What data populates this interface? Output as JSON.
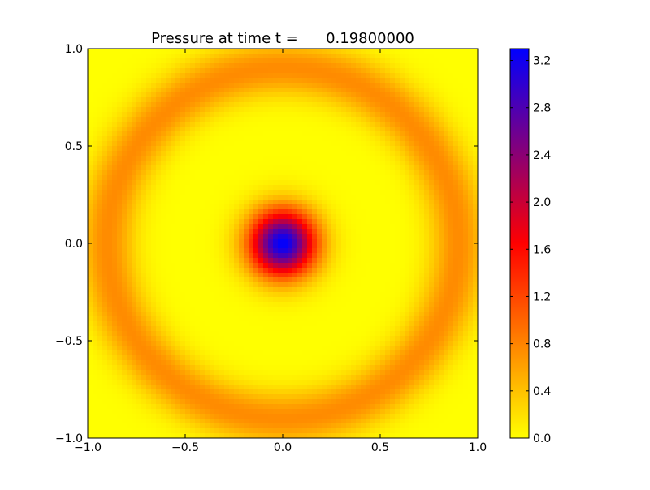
{
  "chart_data": {
    "type": "heatmap",
    "title": "Pressure at time t =      0.19800000",
    "xlabel": "",
    "ylabel": "",
    "xlim": [
      -1.0,
      1.0
    ],
    "ylim": [
      -1.0,
      1.0
    ],
    "x_ticks": [
      "−1.0",
      "−0.5",
      "0.0",
      "0.5",
      "1.0"
    ],
    "y_ticks": [
      "−1.0",
      "−0.5",
      "0.0",
      "0.5",
      "1.0"
    ],
    "x_tick_values": [
      -1.0,
      -0.5,
      0.0,
      0.5,
      1.0
    ],
    "y_tick_values": [
      -1.0,
      -0.5,
      0.0,
      0.5,
      1.0
    ],
    "grid": false,
    "field": {
      "description": "radially symmetric pressure field",
      "center_peak": {
        "r": 0.0,
        "value": 3.3
      },
      "center_sigma": 0.12,
      "ring": {
        "r": 0.9,
        "value": 0.75,
        "sigma": 0.1
      }
    },
    "colorbar": {
      "min": 0.0,
      "max": 3.3,
      "ticks": [
        "0.0",
        "0.4",
        "0.8",
        "1.2",
        "1.6",
        "2.0",
        "2.4",
        "2.8",
        "3.2"
      ],
      "tick_values": [
        0.0,
        0.4,
        0.8,
        1.2,
        1.6,
        2.0,
        2.4,
        2.8,
        3.2
      ],
      "colormap": [
        {
          "v": 0.0,
          "color": "#ffff00"
        },
        {
          "v": 0.5,
          "color": "#ff0000"
        },
        {
          "v": 1.0,
          "color": "#0000ff"
        }
      ]
    },
    "grid_resolution": 80
  }
}
